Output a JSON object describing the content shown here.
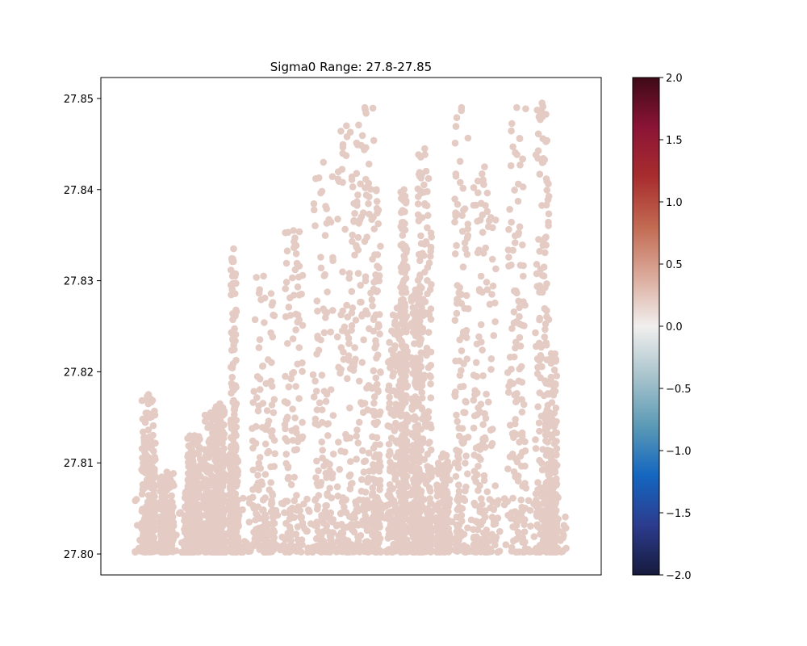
{
  "chart_data": {
    "type": "scatter",
    "title": "Sigma0 Range: 27.8-27.85",
    "xlabel": "",
    "ylabel": "",
    "x_ticks_visible": false,
    "ylim": [
      27.7977,
      27.8523
    ],
    "y_ticks": [
      27.8,
      27.81,
      27.82,
      27.83,
      27.84,
      27.85
    ],
    "y_tick_labels": [
      "27.80",
      "27.81",
      "27.82",
      "27.83",
      "27.84",
      "27.85"
    ],
    "grid": false,
    "colorbar": {
      "colormap": "balance (diverging: dark blue to white to dark red)",
      "range": [
        -2.0,
        2.0
      ],
      "ticks": [
        -2.0,
        -1.5,
        -1.0,
        -0.5,
        0.0,
        0.5,
        1.0,
        1.5,
        2.0
      ],
      "tick_labels": [
        "−2.0",
        "−1.5",
        "−1.0",
        "−0.5",
        "0.0",
        "0.5",
        "1.0",
        "1.5",
        "2.0"
      ],
      "stops": [
        "#161a3c",
        "#2c3c8e",
        "#1466c0",
        "#5b9ab5",
        "#a9c4cd",
        "#f1efee",
        "#dbaa9b",
        "#c26a52",
        "#a82d2e",
        "#8b1436",
        "#3e0a17"
      ]
    },
    "marker_color": "#e4cbc4",
    "marker_color_value": 0.2,
    "series_note": "Dense scatter of several thousand points; values between 27.800 and 27.850 arranged in vertical clusters.",
    "clusters": [
      {
        "x_center": 0.06,
        "width": 0.03,
        "y_max": 27.8175,
        "density": 1.0
      },
      {
        "x_center": 0.1,
        "width": 0.03,
        "y_max": 27.809,
        "density": 0.8
      },
      {
        "x_center": 0.155,
        "width": 0.035,
        "y_max": 27.8075,
        "density": 0.8
      },
      {
        "x_center": 0.16,
        "width": 0.03,
        "y_max": 27.813,
        "density": 0.9
      },
      {
        "x_center": 0.195,
        "width": 0.03,
        "y_max": 27.8155,
        "density": 0.9
      },
      {
        "x_center": 0.215,
        "width": 0.02,
        "y_max": 27.8165,
        "density": 0.9
      },
      {
        "x_center": 0.245,
        "width": 0.02,
        "y_max": 27.811,
        "density": 0.9
      },
      {
        "x_center": 0.245,
        "width": 0.012,
        "y_max": 27.8335,
        "density": 0.7
      },
      {
        "x_center": 0.31,
        "width": 0.05,
        "y_max": 27.8305,
        "density": 0.5
      },
      {
        "x_center": 0.375,
        "width": 0.04,
        "y_max": 27.8355,
        "density": 0.4
      },
      {
        "x_center": 0.44,
        "width": 0.045,
        "y_max": 27.843,
        "density": 0.45
      },
      {
        "x_center": 0.49,
        "width": 0.04,
        "y_max": 27.847,
        "density": 0.4
      },
      {
        "x_center": 0.53,
        "width": 0.04,
        "y_max": 27.849,
        "density": 0.4
      },
      {
        "x_center": 0.555,
        "width": 0.02,
        "y_max": 27.84,
        "density": 0.5
      },
      {
        "x_center": 0.6,
        "width": 0.04,
        "y_max": 27.827,
        "density": 1.0
      },
      {
        "x_center": 0.615,
        "width": 0.015,
        "y_max": 27.84,
        "density": 1.0
      },
      {
        "x_center": 0.64,
        "width": 0.02,
        "y_max": 27.829,
        "density": 1.0
      },
      {
        "x_center": 0.66,
        "width": 0.03,
        "y_max": 27.8445,
        "density": 1.0
      },
      {
        "x_center": 0.7,
        "width": 0.03,
        "y_max": 27.811,
        "density": 0.8
      },
      {
        "x_center": 0.74,
        "width": 0.03,
        "y_max": 27.849,
        "density": 0.5
      },
      {
        "x_center": 0.79,
        "width": 0.05,
        "y_max": 27.8425,
        "density": 0.5
      },
      {
        "x_center": 0.86,
        "width": 0.04,
        "y_max": 27.849,
        "density": 0.5
      },
      {
        "x_center": 0.915,
        "width": 0.03,
        "y_max": 27.8495,
        "density": 0.6
      },
      {
        "x_center": 0.935,
        "width": 0.025,
        "y_max": 27.822,
        "density": 0.9
      }
    ]
  }
}
